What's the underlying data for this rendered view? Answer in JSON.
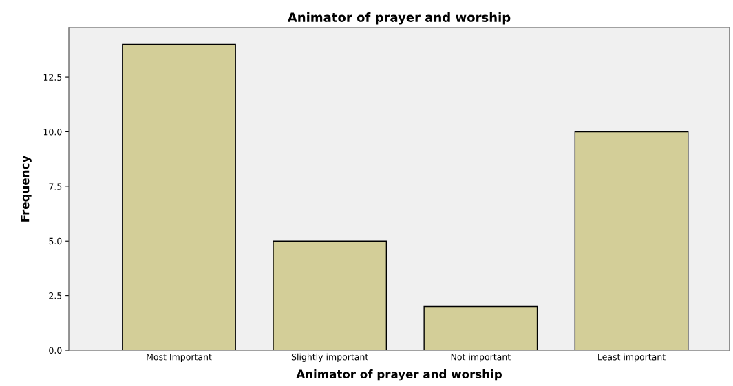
{
  "chart_data": {
    "type": "bar",
    "title": "Animator of prayer and worship",
    "xlabel": "Animator of prayer and worship",
    "ylabel": "Frequency",
    "categories": [
      "Most Important",
      "Slightly important",
      "Not important",
      "Least important"
    ],
    "values": [
      14,
      5,
      2,
      10
    ],
    "color": "#d3ce98",
    "ylim": [
      0,
      14.77
    ],
    "yticks": [
      {
        "value": 0,
        "label": "0.0"
      },
      {
        "value": 2.5,
        "label": "2.5"
      },
      {
        "value": 5,
        "label": "5.0"
      },
      {
        "value": 7.5,
        "label": "7.5"
      },
      {
        "value": 10,
        "label": "10.0"
      },
      {
        "value": 12.5,
        "label": "12.5"
      }
    ],
    "grid": false
  }
}
